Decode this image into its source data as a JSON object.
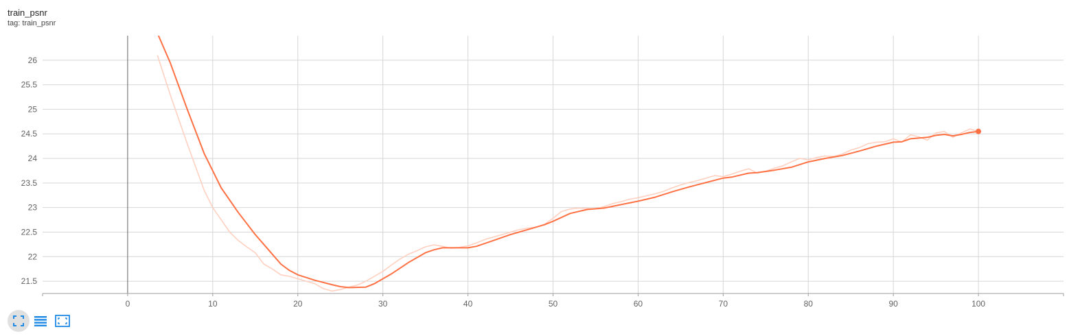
{
  "card": {
    "title": "train_psnr",
    "subtitle": "tag: train_psnr"
  },
  "toolbar": {
    "buttons": [
      {
        "icon": "fit-domain-icon",
        "active": true
      },
      {
        "icon": "toggle-log-scale-icon",
        "active": false
      },
      {
        "icon": "reset-zoom-icon",
        "active": false
      }
    ]
  },
  "colors": {
    "series": "#ff7043",
    "series_raw": "#ffd0c0",
    "grid": "#d6d6d6",
    "axis": "#9e9e9e",
    "zero_line": "#616161",
    "button": "#1e88e5"
  },
  "chart_data": {
    "type": "line",
    "title": "train_psnr",
    "xlabel": "",
    "ylabel": "",
    "xlim": [
      -10,
      110
    ],
    "ylim": [
      21.25,
      26.5
    ],
    "x_ticks": [
      0,
      10,
      20,
      30,
      40,
      50,
      60,
      70,
      80,
      90,
      100
    ],
    "y_ticks": [
      21.5,
      22,
      22.5,
      23,
      23.5,
      24,
      24.5,
      25,
      25.5,
      26
    ],
    "grid": true,
    "series": [
      {
        "role": "smoothed",
        "points": [
          [
            3.5,
            26.55
          ],
          [
            5,
            25.95
          ],
          [
            7,
            25.0
          ],
          [
            9,
            24.1
          ],
          [
            11,
            23.4
          ],
          [
            13,
            22.9
          ],
          [
            15,
            22.45
          ],
          [
            17,
            22.05
          ],
          [
            18,
            21.85
          ],
          [
            19,
            21.72
          ],
          [
            20,
            21.63
          ],
          [
            22,
            21.52
          ],
          [
            24,
            21.43
          ],
          [
            25,
            21.39
          ],
          [
            26,
            21.37
          ],
          [
            28,
            21.38
          ],
          [
            29,
            21.45
          ],
          [
            30,
            21.55
          ],
          [
            31,
            21.65
          ],
          [
            33,
            21.88
          ],
          [
            35,
            22.08
          ],
          [
            36,
            22.14
          ],
          [
            37,
            22.18
          ],
          [
            38,
            22.18
          ],
          [
            40,
            22.18
          ],
          [
            41,
            22.21
          ],
          [
            43,
            22.33
          ],
          [
            45,
            22.45
          ],
          [
            47,
            22.55
          ],
          [
            49,
            22.65
          ],
          [
            50,
            22.72
          ],
          [
            52,
            22.88
          ],
          [
            54,
            22.96
          ],
          [
            56,
            22.99
          ],
          [
            58,
            23.06
          ],
          [
            60,
            23.13
          ],
          [
            62,
            23.21
          ],
          [
            64,
            23.32
          ],
          [
            66,
            23.42
          ],
          [
            68,
            23.51
          ],
          [
            70,
            23.6
          ],
          [
            71,
            23.62
          ],
          [
            73,
            23.7
          ],
          [
            74,
            23.71
          ],
          [
            76,
            23.76
          ],
          [
            78,
            23.82
          ],
          [
            80,
            23.93
          ],
          [
            82,
            24.0
          ],
          [
            84,
            24.06
          ],
          [
            86,
            24.15
          ],
          [
            88,
            24.25
          ],
          [
            90,
            24.33
          ],
          [
            91,
            24.34
          ],
          [
            92,
            24.4
          ],
          [
            94,
            24.43
          ],
          [
            95,
            24.47
          ],
          [
            96,
            24.49
          ],
          [
            97,
            24.46
          ],
          [
            98,
            24.49
          ],
          [
            99,
            24.53
          ],
          [
            100,
            24.55
          ]
        ]
      },
      {
        "role": "raw",
        "points": [
          [
            3.5,
            26.1
          ],
          [
            5,
            25.3
          ],
          [
            7,
            24.3
          ],
          [
            9,
            23.35
          ],
          [
            10,
            23.0
          ],
          [
            11,
            22.75
          ],
          [
            12,
            22.5
          ],
          [
            13,
            22.33
          ],
          [
            14,
            22.2
          ],
          [
            15,
            22.08
          ],
          [
            16,
            21.85
          ],
          [
            17,
            21.75
          ],
          [
            18,
            21.63
          ],
          [
            19,
            21.6
          ],
          [
            20,
            21.55
          ],
          [
            21,
            21.5
          ],
          [
            22,
            21.45
          ],
          [
            23,
            21.35
          ],
          [
            24,
            21.3
          ],
          [
            25,
            21.33
          ],
          [
            26,
            21.38
          ],
          [
            27,
            21.42
          ],
          [
            28,
            21.5
          ],
          [
            29,
            21.6
          ],
          [
            30,
            21.7
          ],
          [
            31,
            21.83
          ],
          [
            32,
            21.95
          ],
          [
            33,
            22.05
          ],
          [
            34,
            22.12
          ],
          [
            35,
            22.2
          ],
          [
            36,
            22.24
          ],
          [
            37,
            22.21
          ],
          [
            38,
            22.17
          ],
          [
            39,
            22.19
          ],
          [
            40,
            22.22
          ],
          [
            41,
            22.28
          ],
          [
            42,
            22.35
          ],
          [
            43,
            22.4
          ],
          [
            44,
            22.45
          ],
          [
            45,
            22.5
          ],
          [
            46,
            22.55
          ],
          [
            47,
            22.58
          ],
          [
            48,
            22.6
          ],
          [
            49,
            22.66
          ],
          [
            50,
            22.78
          ],
          [
            51,
            22.92
          ],
          [
            52,
            22.97
          ],
          [
            53,
            22.99
          ],
          [
            54,
            22.98
          ],
          [
            55,
            22.97
          ],
          [
            56,
            23.02
          ],
          [
            57,
            23.08
          ],
          [
            58,
            23.12
          ],
          [
            59,
            23.17
          ],
          [
            60,
            23.2
          ],
          [
            61,
            23.24
          ],
          [
            62,
            23.28
          ],
          [
            63,
            23.33
          ],
          [
            64,
            23.4
          ],
          [
            65,
            23.46
          ],
          [
            66,
            23.51
          ],
          [
            67,
            23.55
          ],
          [
            68,
            23.6
          ],
          [
            69,
            23.65
          ],
          [
            70,
            23.63
          ],
          [
            71,
            23.68
          ],
          [
            72,
            23.74
          ],
          [
            73,
            23.79
          ],
          [
            74,
            23.7
          ],
          [
            75,
            23.74
          ],
          [
            76,
            23.8
          ],
          [
            77,
            23.85
          ],
          [
            78,
            23.93
          ],
          [
            79,
            24.0
          ],
          [
            80,
            23.97
          ],
          [
            81,
            24.02
          ],
          [
            82,
            24.05
          ],
          [
            83,
            24.04
          ],
          [
            84,
            24.09
          ],
          [
            85,
            24.17
          ],
          [
            86,
            24.22
          ],
          [
            87,
            24.3
          ],
          [
            88,
            24.33
          ],
          [
            89,
            24.34
          ],
          [
            90,
            24.4
          ],
          [
            91,
            24.33
          ],
          [
            92,
            24.48
          ],
          [
            93,
            24.44
          ],
          [
            94,
            24.37
          ],
          [
            95,
            24.52
          ],
          [
            96,
            24.55
          ],
          [
            97,
            24.43
          ],
          [
            98,
            24.52
          ],
          [
            99,
            24.6
          ],
          [
            100,
            24.55
          ]
        ]
      }
    ]
  }
}
